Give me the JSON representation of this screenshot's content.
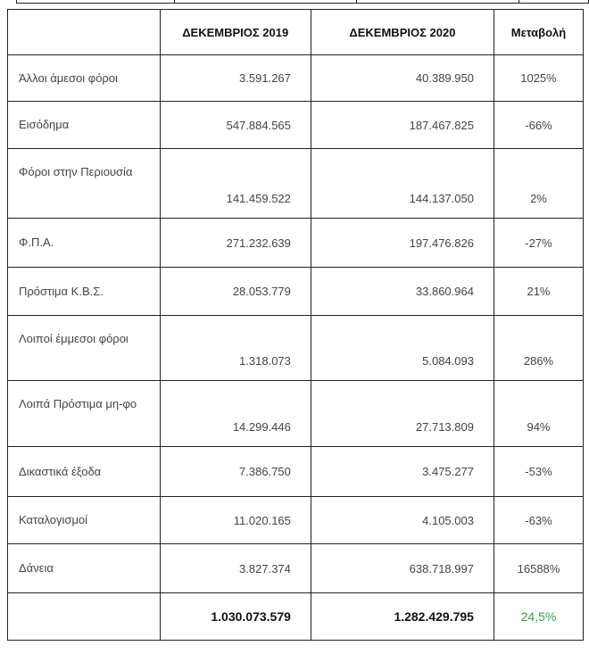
{
  "header": {
    "col0": "",
    "col1": "ΔΕΚΕΜΒΡΙΟΣ 2019",
    "col2": "ΔΕΚΕΜΒΡΙΟΣ 2020",
    "col3": "Μεταβολή"
  },
  "rows": [
    {
      "label": "Άλλοι άμεσοι φόροι",
      "v2019": "3.591.267",
      "v2020": "40.389.950",
      "change": "1025%"
    },
    {
      "label": "Εισόδημα",
      "v2019": "547.884.565",
      "v2020": "187.467.825",
      "change": "-66%"
    },
    {
      "label": "Φόροι στην Περιουσία",
      "v2019": "141.459.522",
      "v2020": "144.137.050",
      "change": "2%"
    },
    {
      "label": "Φ.Π.Α.",
      "v2019": "271.232.639",
      "v2020": "197.476.826",
      "change": "-27%"
    },
    {
      "label": "Πρόστιμα Κ.Β.Σ.",
      "v2019": "28.053.779",
      "v2020": "33.860.964",
      "change": "21%"
    },
    {
      "label": "Λοιποί έμμεσοι φόροι",
      "v2019": "1.318.073",
      "v2020": "5.084.093",
      "change": "286%"
    },
    {
      "label": "Λοιπά Πρόστιμα μη-φο",
      "v2019": "14.299.446",
      "v2020": "27.713.809",
      "change": "94%"
    },
    {
      "label": "Δικαστικά έξοδα",
      "v2019": "7.386.750",
      "v2020": "3.475.277",
      "change": "-53%"
    },
    {
      "label": "Καταλογισμοί",
      "v2019": "11.020.165",
      "v2020": "4.105.003",
      "change": "-63%"
    },
    {
      "label": "Δάνεια",
      "v2019": "3.827.374",
      "v2020": "638.718.997",
      "change": "16588%"
    }
  ],
  "total": {
    "label": "",
    "v2019": "1.030.073.579",
    "v2020": "1.282.429.795",
    "change": "24,5%"
  },
  "colors": {
    "positive_total": "#3a9a5b"
  }
}
